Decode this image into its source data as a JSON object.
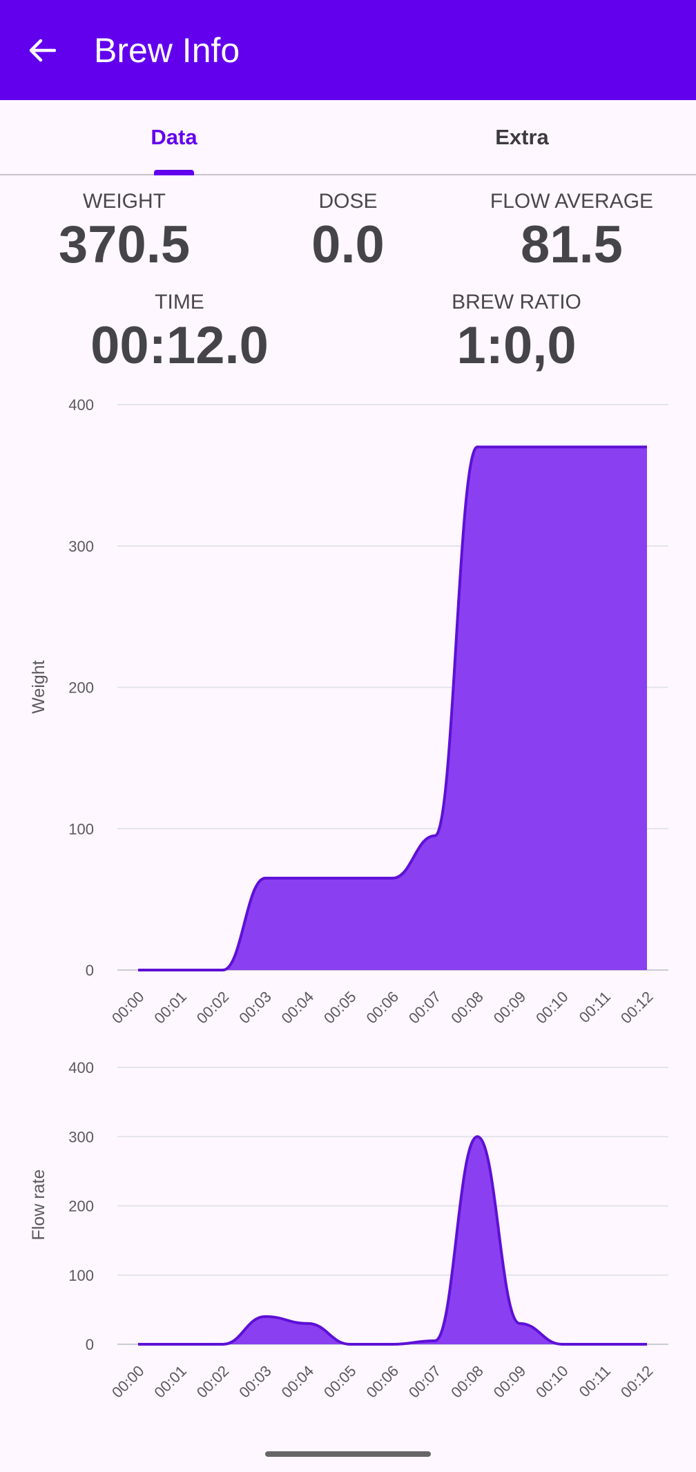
{
  "appbar": {
    "title": "Brew Info",
    "back_icon": "arrow-back-icon"
  },
  "tabs": [
    {
      "label": "Data",
      "active": true
    },
    {
      "label": "Extra",
      "active": false
    }
  ],
  "stats": {
    "weight": {
      "label": "WEIGHT",
      "value": "370.5"
    },
    "dose": {
      "label": "DOSE",
      "value": "0.0"
    },
    "flow_average": {
      "label": "FLOW AVERAGE",
      "value": "81.5"
    },
    "time": {
      "label": "TIME",
      "value": "00:12.0"
    },
    "brew_ratio": {
      "label": "BREW RATIO",
      "value": "1:0,0"
    }
  },
  "colors": {
    "accent": "#6200EE",
    "area_fill": "#8A3FF1",
    "area_line": "#5E10D6",
    "background": "#FEF7FF"
  },
  "chart_data": [
    {
      "type": "area",
      "ylabel": "Weight",
      "ylim": [
        0,
        400
      ],
      "yticks": [
        0,
        100,
        200,
        300,
        400
      ],
      "x": [
        "00:00",
        "00:01",
        "00:02",
        "00:03",
        "00:04",
        "00:05",
        "00:06",
        "00:07",
        "00:08",
        "00:09",
        "00:10",
        "00:11",
        "00:12"
      ],
      "series": [
        {
          "values": [
            0,
            0,
            0,
            65,
            65,
            65,
            65,
            95,
            370,
            370,
            370,
            370,
            370
          ]
        }
      ],
      "grid": true
    },
    {
      "type": "area",
      "ylabel": "Flow rate",
      "ylim": [
        0,
        400
      ],
      "yticks": [
        0,
        100,
        200,
        300,
        400
      ],
      "x": [
        "00:00",
        "00:01",
        "00:02",
        "00:03",
        "00:04",
        "00:05",
        "00:06",
        "00:07",
        "00:08",
        "00:09",
        "00:10",
        "00:11",
        "00:12"
      ],
      "series": [
        {
          "values": [
            0,
            0,
            0,
            40,
            30,
            0,
            0,
            5,
            300,
            30,
            0,
            0,
            0
          ]
        }
      ],
      "grid": true
    }
  ]
}
